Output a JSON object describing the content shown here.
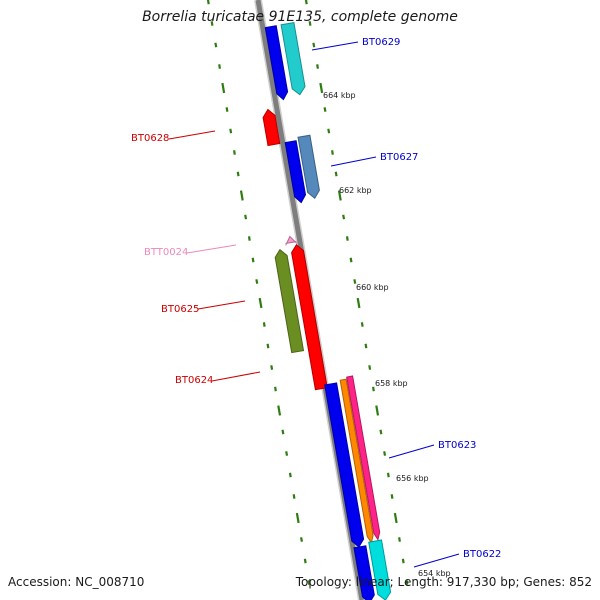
{
  "title": "Borrelia turicatae 91E135, complete genome",
  "footer": {
    "accession": "Accession: NC_008710",
    "topology": "Topology: linear; Length: 917,330 bp; Genes: 852"
  },
  "colors": {
    "backbone": "#888888",
    "tick": "#2e7d12",
    "label_red": "#cc0000",
    "label_blue": "#0000cc",
    "label_pink": "#ee88bb"
  },
  "kbp_markers": [
    "664 kbp",
    "662 kbp",
    "660 kbp",
    "658 kbp",
    "656 kbp",
    "654 kbp"
  ],
  "features": [
    {
      "label": "BT0629",
      "color": "#0000ee",
      "strand": "minus"
    },
    {
      "label": "",
      "color": "#22cccc",
      "strand": "minus"
    },
    {
      "label": "BT0628",
      "color": "#ff0000",
      "strand": "plus"
    },
    {
      "label": "BT0627",
      "color": "#0000ee",
      "strand": "minus"
    },
    {
      "label": "",
      "color": "#5588bb",
      "strand": "minus"
    },
    {
      "label": "BTT0024",
      "color": "#ff99cc",
      "strand": "plus"
    },
    {
      "label": "BT0625",
      "color": "#6b8e23",
      "strand": "plus"
    },
    {
      "label": "BT0624",
      "color": "#ff0000",
      "strand": "plus"
    },
    {
      "label": "BT0623",
      "color": "#0000ee",
      "strand": "minus"
    },
    {
      "label": "",
      "color": "#ff8800",
      "strand": "minus"
    },
    {
      "label": "",
      "color": "#ff2288",
      "strand": "minus"
    },
    {
      "label": "BT0622",
      "color": "#0000ee",
      "strand": "minus"
    },
    {
      "label": "",
      "color": "#00dddd",
      "strand": "minus"
    }
  ]
}
